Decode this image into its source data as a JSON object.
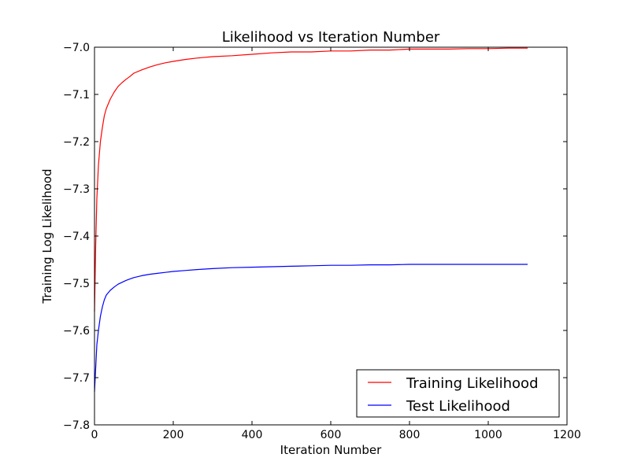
{
  "chart_data": {
    "type": "line",
    "title": "Likelihood vs Iteration Number",
    "xlabel": "Iteration Number",
    "ylabel": "Training Log Likelihood",
    "xlim": [
      0,
      1200
    ],
    "ylim": [
      -7.8,
      -7.0
    ],
    "xticks": [
      "0",
      "200",
      "400",
      "600",
      "800",
      "1000",
      "1200"
    ],
    "yticks": [
      "−7.0",
      "−7.1",
      "−7.2",
      "−7.3",
      "−7.4",
      "−7.5",
      "−7.6",
      "−7.7",
      "−7.8"
    ],
    "grid": false,
    "legend_position": "lower-right",
    "series": [
      {
        "name": "Training Likelihood",
        "color": "#ff0000",
        "x": [
          0,
          3,
          6,
          10,
          15,
          20,
          25,
          30,
          40,
          50,
          60,
          70,
          80,
          90,
          100,
          120,
          140,
          160,
          180,
          200,
          230,
          260,
          300,
          350,
          400,
          450,
          500,
          550,
          600,
          650,
          700,
          750,
          800,
          850,
          900,
          950,
          1000,
          1050,
          1100
        ],
        "y": [
          -7.56,
          -7.42,
          -7.32,
          -7.25,
          -7.2,
          -7.17,
          -7.145,
          -7.13,
          -7.11,
          -7.095,
          -7.083,
          -7.075,
          -7.068,
          -7.062,
          -7.055,
          -7.048,
          -7.042,
          -7.037,
          -7.033,
          -7.03,
          -7.026,
          -7.023,
          -7.02,
          -7.018,
          -7.015,
          -7.012,
          -7.01,
          -7.01,
          -7.008,
          -7.008,
          -7.006,
          -7.006,
          -7.004,
          -7.004,
          -7.004,
          -7.003,
          -7.003,
          -7.002,
          -7.002
        ]
      },
      {
        "name": "Test Likelihood",
        "color": "#0000ff",
        "x": [
          0,
          3,
          6,
          10,
          15,
          20,
          25,
          30,
          40,
          50,
          60,
          70,
          80,
          90,
          100,
          120,
          140,
          160,
          180,
          200,
          230,
          260,
          300,
          350,
          400,
          450,
          500,
          550,
          600,
          650,
          700,
          750,
          800,
          850,
          900,
          950,
          1000,
          1050,
          1100
        ],
        "y": [
          -7.73,
          -7.68,
          -7.63,
          -7.6,
          -7.57,
          -7.55,
          -7.535,
          -7.525,
          -7.515,
          -7.508,
          -7.502,
          -7.498,
          -7.494,
          -7.491,
          -7.488,
          -7.484,
          -7.481,
          -7.479,
          -7.477,
          -7.475,
          -7.473,
          -7.471,
          -7.469,
          -7.467,
          -7.466,
          -7.465,
          -7.464,
          -7.463,
          -7.462,
          -7.462,
          -7.461,
          -7.461,
          -7.46,
          -7.46,
          -7.46,
          -7.46,
          -7.46,
          -7.46,
          -7.46
        ]
      }
    ]
  }
}
